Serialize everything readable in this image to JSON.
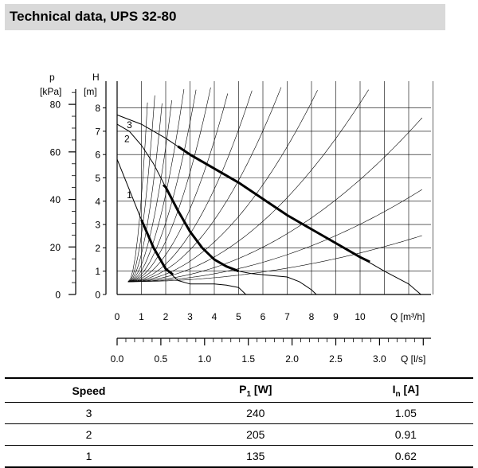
{
  "title": "Technical data, UPS 32-80",
  "chart_data": {
    "type": "line",
    "p_axis": {
      "label_name": "p",
      "label_unit": "[kPa]",
      "ticks": [
        0,
        20,
        40,
        60,
        80
      ],
      "lim": [
        0,
        80
      ]
    },
    "h_axis": {
      "label_name": "H",
      "label_unit": "[m]",
      "ticks": [
        0,
        1,
        2,
        3,
        4,
        5,
        6,
        7,
        8
      ],
      "lim": [
        0,
        8
      ]
    },
    "q_axis": {
      "label": "Q [m³/h]",
      "ticks": [
        0,
        1,
        2,
        3,
        4,
        5,
        6,
        7,
        8,
        9,
        10
      ],
      "lim": [
        0,
        13
      ]
    },
    "qls_axis": {
      "label": "Q [l/s]",
      "ticks": [
        "0.0",
        "0.5",
        "1.0",
        "1.5",
        "2.0",
        "2.5",
        "3.0"
      ],
      "lim": [
        0,
        3.5
      ]
    },
    "grid": true,
    "series": [
      {
        "name": "3",
        "points": [
          [
            0,
            7.7
          ],
          [
            1,
            7.3
          ],
          [
            2,
            6.7
          ],
          [
            3,
            6.0
          ],
          [
            4,
            5.4
          ],
          [
            5,
            4.8
          ],
          [
            6,
            4.1
          ],
          [
            7,
            3.4
          ],
          [
            8,
            2.8
          ],
          [
            9,
            2.2
          ],
          [
            10,
            1.6
          ],
          [
            11,
            1.0
          ],
          [
            12,
            0.45
          ],
          [
            12.5,
            0
          ]
        ],
        "bold_points": [
          [
            2.5,
            6.35
          ],
          [
            3,
            6.0
          ],
          [
            4,
            5.4
          ],
          [
            5,
            4.8
          ],
          [
            6,
            4.1
          ],
          [
            7,
            3.4
          ],
          [
            8,
            2.8
          ],
          [
            9,
            2.2
          ],
          [
            10,
            1.6
          ],
          [
            10.4,
            1.4
          ]
        ]
      },
      {
        "name": "2",
        "points": [
          [
            0,
            7.3
          ],
          [
            0.5,
            7.0
          ],
          [
            1,
            6.4
          ],
          [
            1.5,
            5.6
          ],
          [
            2,
            4.6
          ],
          [
            2.5,
            3.6
          ],
          [
            3,
            2.7
          ],
          [
            3.5,
            2.0
          ],
          [
            4,
            1.5
          ],
          [
            4.5,
            1.2
          ],
          [
            5,
            1.0
          ],
          [
            5.5,
            0.9
          ],
          [
            6,
            0.85
          ],
          [
            6.5,
            0.8
          ],
          [
            7,
            0.75
          ],
          [
            7.5,
            0.55
          ],
          [
            8,
            0.2
          ],
          [
            8.2,
            0
          ]
        ],
        "bold_points": [
          [
            1.9,
            4.7
          ],
          [
            2,
            4.6
          ],
          [
            2.5,
            3.6
          ],
          [
            3,
            2.7
          ],
          [
            3.5,
            2.0
          ],
          [
            4,
            1.5
          ],
          [
            4.5,
            1.2
          ],
          [
            5,
            1.0
          ]
        ]
      },
      {
        "name": "1",
        "points": [
          [
            0,
            5.8
          ],
          [
            0.5,
            4.5
          ],
          [
            1,
            3.2
          ],
          [
            1.5,
            2.0
          ],
          [
            2,
            1.1
          ],
          [
            2.5,
            0.6
          ],
          [
            3,
            0.45
          ],
          [
            3.5,
            0.45
          ],
          [
            4,
            0.45
          ],
          [
            4.5,
            0.4
          ],
          [
            5,
            0.3
          ],
          [
            5.3,
            0
          ]
        ],
        "bold_points": [
          [
            1,
            3.2
          ],
          [
            1.5,
            2.0
          ],
          [
            2,
            1.1
          ],
          [
            2.3,
            0.85
          ]
        ]
      }
    ]
  },
  "specs": {
    "headers": {
      "speed": "Speed",
      "p1_main": "P",
      "p1_sub": "1",
      "p1_unit": " [W]",
      "in_main": "I",
      "in_sub": "n",
      "in_unit": " [A]"
    },
    "rows": [
      {
        "speed": "3",
        "p1": "240",
        "in": "1.05"
      },
      {
        "speed": "2",
        "p1": "205",
        "in": "0.91"
      },
      {
        "speed": "1",
        "p1": "135",
        "in": "0.62"
      }
    ]
  }
}
